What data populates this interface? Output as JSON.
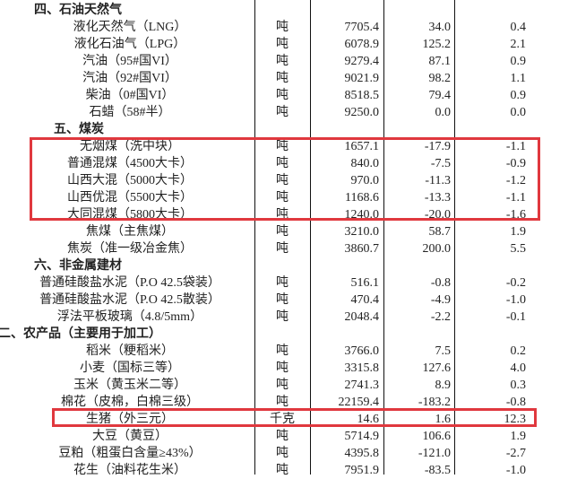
{
  "highlight_color": "#e0383e",
  "rows": [
    {
      "type": "section",
      "label": "四、石油天然气"
    },
    {
      "type": "item",
      "name": "液化天然气（LNG）",
      "unit": "吨",
      "price": "7705.4",
      "change": "34.0",
      "pct": "0.4"
    },
    {
      "type": "item",
      "name": "液化石油气（LPG）",
      "unit": "吨",
      "price": "6078.9",
      "change": "125.2",
      "pct": "2.1"
    },
    {
      "type": "item",
      "name": "汽油（95#国VI）",
      "unit": "吨",
      "price": "9279.4",
      "change": "87.1",
      "pct": "0.9"
    },
    {
      "type": "item",
      "name": "汽油（92#国VI）",
      "unit": "吨",
      "price": "9021.9",
      "change": "98.2",
      "pct": "1.1"
    },
    {
      "type": "item",
      "name": "柴油（0#国VI）",
      "unit": "吨",
      "price": "8518.5",
      "change": "79.4",
      "pct": "0.9"
    },
    {
      "type": "item",
      "name": "石蜡（58#半）",
      "unit": "吨",
      "price": "9250.0",
      "change": "0.0",
      "pct": "0.0"
    },
    {
      "type": "section",
      "label": "五、煤炭"
    },
    {
      "type": "item",
      "name": "无烟煤（洗中块）",
      "unit": "吨",
      "price": "1657.1",
      "change": "-17.9",
      "pct": "-1.1",
      "highlight": true
    },
    {
      "type": "item",
      "name": "普通混煤（4500大卡）",
      "unit": "吨",
      "price": "840.0",
      "change": "-7.5",
      "pct": "-0.9",
      "highlight": true
    },
    {
      "type": "item",
      "name": "山西大混（5000大卡）",
      "unit": "吨",
      "price": "970.0",
      "change": "-11.3",
      "pct": "-1.2",
      "highlight": true
    },
    {
      "type": "item",
      "name": "山西优混（5500大卡）",
      "unit": "吨",
      "price": "1168.6",
      "change": "-13.3",
      "pct": "-1.1",
      "highlight": true
    },
    {
      "type": "item",
      "name": "大同混煤（5800大卡）",
      "unit": "吨",
      "price": "1240.0",
      "change": "-20.0",
      "pct": "-1.6",
      "highlight": true
    },
    {
      "type": "item",
      "name": "焦煤（主焦煤）",
      "unit": "吨",
      "price": "3210.0",
      "change": "58.7",
      "pct": "1.9"
    },
    {
      "type": "item",
      "name": "焦炭（准一级冶金焦）",
      "unit": "吨",
      "price": "3860.7",
      "change": "200.0",
      "pct": "5.5"
    },
    {
      "type": "section",
      "label": "六、非金属建材"
    },
    {
      "type": "item",
      "name": "普通硅酸盐水泥（P.O 42.5袋装）",
      "unit": "吨",
      "price": "516.1",
      "change": "-0.8",
      "pct": "-0.2"
    },
    {
      "type": "item",
      "name": "普通硅酸盐水泥（P.O 42.5散装）",
      "unit": "吨",
      "price": "470.4",
      "change": "-4.9",
      "pct": "-1.0"
    },
    {
      "type": "item",
      "name": "浮法平板玻璃（4.8/5mm）",
      "unit": "吨",
      "price": "2048.4",
      "change": "-2.2",
      "pct": "-0.1"
    },
    {
      "type": "section",
      "label": "二、农产品（主要用于加工）"
    },
    {
      "type": "item",
      "name": "稻米（粳稻米）",
      "unit": "吨",
      "price": "3766.0",
      "change": "7.5",
      "pct": "0.2"
    },
    {
      "type": "item",
      "name": "小麦（国标三等）",
      "unit": "吨",
      "price": "3315.8",
      "change": "127.6",
      "pct": "4.0"
    },
    {
      "type": "item",
      "name": "玉米（黄玉米二等）",
      "unit": "吨",
      "price": "2741.3",
      "change": "8.9",
      "pct": "0.3"
    },
    {
      "type": "item",
      "name": "棉花（皮棉，白棉三级）",
      "unit": "吨",
      "price": "22159.4",
      "change": "-183.2",
      "pct": "-0.8"
    },
    {
      "type": "item",
      "name": "生猪（外三元）",
      "unit": "千克",
      "price": "14.6",
      "change": "1.6",
      "pct": "12.3",
      "highlight": true
    },
    {
      "type": "item",
      "name": "大豆（黄豆）",
      "unit": "吨",
      "price": "5714.9",
      "change": "106.6",
      "pct": "1.9"
    },
    {
      "type": "item",
      "name": "豆粕（粗蛋白含量≥43%）",
      "unit": "吨",
      "price": "4395.8",
      "change": "-121.0",
      "pct": "-2.7"
    },
    {
      "type": "item",
      "name": "花生（油料花生米）",
      "unit": "吨",
      "price": "7951.9",
      "change": "-83.5",
      "pct": "-1.0"
    }
  ]
}
